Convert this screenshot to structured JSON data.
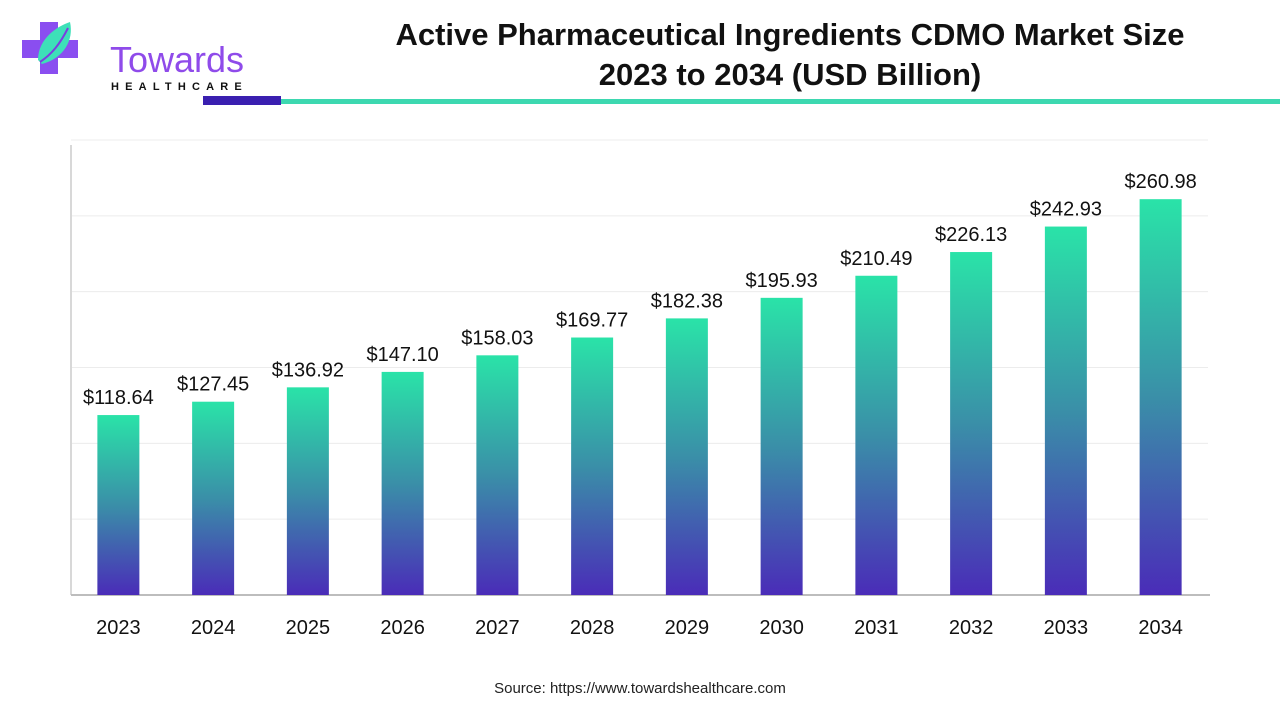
{
  "header": {
    "title_line1": "Active Pharmaceutical Ingredients CDMO Market Size",
    "title_line2": "2023 to 2034 (USD Billion)"
  },
  "logo": {
    "name": "Towards",
    "sub": "HEALTHCARE",
    "colors": {
      "purple": "#8f4bea",
      "teal": "#3dd8b0"
    }
  },
  "source": "Source: https://www.towardshealthcare.com",
  "chart_data": {
    "type": "bar",
    "title": "Active Pharmaceutical Ingredients CDMO Market Size 2023 to 2034 (USD Billion)",
    "categories": [
      "2023",
      "2024",
      "2025",
      "2026",
      "2027",
      "2028",
      "2029",
      "2030",
      "2031",
      "2032",
      "2033",
      "2034"
    ],
    "values": [
      118.64,
      127.45,
      136.92,
      147.1,
      158.03,
      169.77,
      182.38,
      195.93,
      210.49,
      226.13,
      242.93,
      260.98
    ],
    "labels": [
      "$118.64",
      "$127.45",
      "$136.92",
      "$147.10",
      "$158.03",
      "$169.77",
      "$182.38",
      "$195.93",
      "$210.49",
      "$226.13",
      "$242.93",
      "$260.98"
    ],
    "xlabel": "",
    "ylabel": "",
    "ylim": [
      0,
      300
    ],
    "grid": true,
    "gridlines": [
      50,
      100,
      150,
      200,
      250,
      300
    ],
    "colors": {
      "bar_top": "#2ae3a8",
      "bar_mid": "#3a8fa8",
      "bar_bottom": "#4a2cb8"
    }
  }
}
